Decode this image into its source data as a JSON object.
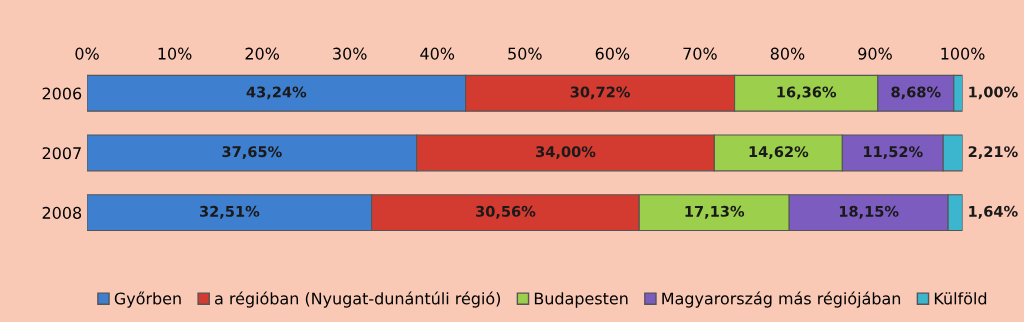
{
  "chart_data": {
    "type": "bar",
    "orientation": "horizontal",
    "stacked": true,
    "categories": [
      "2006",
      "2007",
      "2008"
    ],
    "series": [
      {
        "name": "Győrben",
        "color": "#3f7fcf",
        "values": [
          43.24,
          37.65,
          32.51
        ],
        "value_labels": [
          "43,24%",
          "37,65%",
          "32,51%"
        ]
      },
      {
        "name": "a régióban (Nyugat-dunántúli régió)",
        "color": "#d33a30",
        "values": [
          30.72,
          34.0,
          30.56
        ],
        "value_labels": [
          "30,72%",
          "34,00%",
          "30,56%"
        ]
      },
      {
        "name": "Budapesten",
        "color": "#9ccf4c",
        "values": [
          16.36,
          14.62,
          17.13
        ],
        "value_labels": [
          "16,36%",
          "14,62%",
          "17,13%"
        ]
      },
      {
        "name": "Magyarország más régiójában",
        "color": "#7d5cbf",
        "values": [
          8.68,
          11.52,
          18.15
        ],
        "value_labels": [
          "8,68%",
          "11,52%",
          "18,15%"
        ]
      },
      {
        "name": "Külföld",
        "color": "#3cb6cf",
        "values": [
          1.0,
          2.21,
          1.64
        ],
        "value_labels": [
          "1,00%",
          "2,21%",
          "1,64%"
        ]
      }
    ],
    "xlim": [
      0,
      100
    ],
    "xticks": [
      {
        "value": 0,
        "label": "0%"
      },
      {
        "value": 10,
        "label": "10%"
      },
      {
        "value": 20,
        "label": "20%"
      },
      {
        "value": 30,
        "label": "30%"
      },
      {
        "value": 40,
        "label": "40%"
      },
      {
        "value": 50,
        "label": "50%"
      },
      {
        "value": 60,
        "label": "60%"
      },
      {
        "value": 70,
        "label": "70%"
      },
      {
        "value": 80,
        "label": "80%"
      },
      {
        "value": 90,
        "label": "90%"
      },
      {
        "value": 100,
        "label": "100%"
      }
    ],
    "legend": "bottom"
  }
}
